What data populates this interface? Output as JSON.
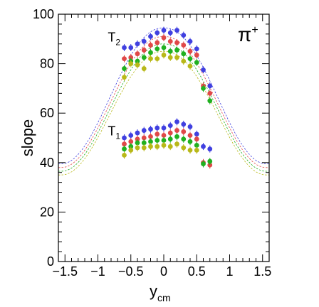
{
  "chart_data": {
    "type": "scatter",
    "xlabel": "y",
    "xlabel_sub": "cm",
    "ylabel": "slope",
    "xlim": [
      -1.6,
      1.6
    ],
    "ylim": [
      0,
      100
    ],
    "xticks": [
      -1.5,
      -1,
      -0.5,
      0,
      0.5,
      1,
      1.5
    ],
    "xtick_labels": [
      "−1.5",
      "−1",
      "−0.5",
      "0",
      "0.5",
      "1",
      "1.5"
    ],
    "yticks": [
      0,
      20,
      40,
      60,
      80,
      100
    ],
    "ytick_labels": [
      "0",
      "20",
      "40",
      "60",
      "80",
      "100"
    ],
    "grid": false,
    "particle_label": "π",
    "particle_charge": "+",
    "annotations": [
      {
        "text": "T",
        "sub": "2",
        "x": -0.85,
        "y": 89
      },
      {
        "text": "T",
        "sub": "1",
        "x": -0.85,
        "y": 51
      }
    ],
    "colors": {
      "blue": "#4040e0",
      "red": "#e04848",
      "green": "#20b020",
      "olive": "#b8b818"
    },
    "series": [
      {
        "group": "T2",
        "color": "blue",
        "points": [
          {
            "x": -0.6,
            "y": 86.5
          },
          {
            "x": -0.5,
            "y": 86.5
          },
          {
            "x": -0.4,
            "y": 88
          },
          {
            "x": -0.3,
            "y": 89
          },
          {
            "x": -0.2,
            "y": 91
          },
          {
            "x": -0.1,
            "y": 92.5
          },
          {
            "x": 0.0,
            "y": 93.5
          },
          {
            "x": 0.1,
            "y": 92.5
          },
          {
            "x": 0.2,
            "y": 93.5
          },
          {
            "x": 0.3,
            "y": 91.5
          },
          {
            "x": 0.4,
            "y": 89
          },
          {
            "x": 0.5,
            "y": 86
          },
          {
            "x": 0.6,
            "y": 77.5
          },
          {
            "x": 0.7,
            "y": 71
          }
        ]
      },
      {
        "group": "T2",
        "color": "red",
        "points": [
          {
            "x": -0.6,
            "y": 82
          },
          {
            "x": -0.5,
            "y": 82.5
          },
          {
            "x": -0.4,
            "y": 84
          },
          {
            "x": -0.3,
            "y": 85.5
          },
          {
            "x": -0.2,
            "y": 87.5
          },
          {
            "x": -0.1,
            "y": 88.5
          },
          {
            "x": 0.0,
            "y": 90.5
          },
          {
            "x": 0.1,
            "y": 89
          },
          {
            "x": 0.2,
            "y": 88.5
          },
          {
            "x": 0.3,
            "y": 87.5
          },
          {
            "x": 0.4,
            "y": 85
          },
          {
            "x": 0.5,
            "y": 83.5
          },
          {
            "x": 0.6,
            "y": 71
          },
          {
            "x": 0.7,
            "y": 68
          }
        ]
      },
      {
        "group": "T2",
        "color": "green",
        "points": [
          {
            "x": -0.6,
            "y": 78
          },
          {
            "x": -0.5,
            "y": 81
          },
          {
            "x": -0.4,
            "y": 81
          },
          {
            "x": -0.3,
            "y": 82.5
          },
          {
            "x": -0.2,
            "y": 84.5
          },
          {
            "x": -0.1,
            "y": 86
          },
          {
            "x": 0.0,
            "y": 86.5
          },
          {
            "x": 0.1,
            "y": 85
          },
          {
            "x": 0.2,
            "y": 85.5
          },
          {
            "x": 0.3,
            "y": 84
          },
          {
            "x": 0.4,
            "y": 82
          },
          {
            "x": 0.5,
            "y": 80.5
          },
          {
            "x": 0.6,
            "y": 70
          },
          {
            "x": 0.7,
            "y": 65
          }
        ]
      },
      {
        "group": "T2",
        "color": "olive",
        "points": [
          {
            "x": -0.6,
            "y": 74.5
          },
          {
            "x": -0.5,
            "y": 80
          },
          {
            "x": -0.4,
            "y": 79.5
          },
          {
            "x": -0.3,
            "y": 78
          },
          {
            "x": -0.2,
            "y": 82
          },
          {
            "x": -0.1,
            "y": 82
          },
          {
            "x": 0.0,
            "y": 83.5
          },
          {
            "x": 0.1,
            "y": 82.5
          },
          {
            "x": 0.2,
            "y": 82.5
          },
          {
            "x": 0.3,
            "y": 81
          },
          {
            "x": 0.4,
            "y": 79
          }
        ]
      },
      {
        "group": "T1",
        "color": "blue",
        "points": [
          {
            "x": -0.6,
            "y": 50
          },
          {
            "x": -0.5,
            "y": 51
          },
          {
            "x": -0.4,
            "y": 52
          },
          {
            "x": -0.3,
            "y": 53
          },
          {
            "x": -0.2,
            "y": 53.5
          },
          {
            "x": -0.1,
            "y": 54
          },
          {
            "x": 0.0,
            "y": 54
          },
          {
            "x": 0.1,
            "y": 55
          },
          {
            "x": 0.2,
            "y": 56.5
          },
          {
            "x": 0.3,
            "y": 55.5
          },
          {
            "x": 0.4,
            "y": 54.5
          },
          {
            "x": 0.5,
            "y": 51.5
          },
          {
            "x": 0.6,
            "y": 46.5
          },
          {
            "x": 0.7,
            "y": 45.5
          }
        ]
      },
      {
        "group": "T1",
        "color": "red",
        "points": [
          {
            "x": -0.6,
            "y": 47.5
          },
          {
            "x": -0.5,
            "y": 48.5
          },
          {
            "x": -0.4,
            "y": 49.5
          },
          {
            "x": -0.3,
            "y": 50
          },
          {
            "x": -0.2,
            "y": 50.5
          },
          {
            "x": -0.1,
            "y": 51.5
          },
          {
            "x": 0.0,
            "y": 51
          },
          {
            "x": 0.1,
            "y": 52
          },
          {
            "x": 0.2,
            "y": 53
          },
          {
            "x": 0.3,
            "y": 52.5
          },
          {
            "x": 0.4,
            "y": 51
          },
          {
            "x": 0.5,
            "y": 49.5
          },
          {
            "x": 0.6,
            "y": 40
          },
          {
            "x": 0.7,
            "y": 39
          }
        ]
      },
      {
        "group": "T1",
        "color": "green",
        "points": [
          {
            "x": -0.6,
            "y": 45.5
          },
          {
            "x": -0.5,
            "y": 46.5
          },
          {
            "x": -0.4,
            "y": 48
          },
          {
            "x": -0.3,
            "y": 48
          },
          {
            "x": -0.2,
            "y": 48.5
          },
          {
            "x": -0.1,
            "y": 49
          },
          {
            "x": 0.0,
            "y": 49
          },
          {
            "x": 0.1,
            "y": 49.5
          },
          {
            "x": 0.2,
            "y": 50.5
          },
          {
            "x": 0.3,
            "y": 49.5
          },
          {
            "x": 0.4,
            "y": 48.5
          },
          {
            "x": 0.5,
            "y": 47
          },
          {
            "x": 0.6,
            "y": 39.5
          },
          {
            "x": 0.7,
            "y": 40.5
          }
        ]
      },
      {
        "group": "T1",
        "color": "olive",
        "points": [
          {
            "x": -0.6,
            "y": 43
          },
          {
            "x": -0.5,
            "y": 45
          },
          {
            "x": -0.4,
            "y": 46
          },
          {
            "x": -0.3,
            "y": 46
          },
          {
            "x": -0.2,
            "y": 46.5
          },
          {
            "x": -0.1,
            "y": 46.5
          },
          {
            "x": 0.0,
            "y": 47
          },
          {
            "x": 0.1,
            "y": 46.5
          },
          {
            "x": 0.2,
            "y": 47.5
          },
          {
            "x": 0.3,
            "y": 46
          },
          {
            "x": 0.4,
            "y": 45
          },
          {
            "x": 0.5,
            "y": 45
          }
        ]
      }
    ],
    "fit_curves": [
      {
        "color": "blue",
        "peak": 94.5,
        "edge": 39.5
      },
      {
        "color": "red",
        "peak": 91,
        "edge": 38
      },
      {
        "color": "green",
        "peak": 88,
        "edge": 36.5
      },
      {
        "color": "olive",
        "peak": 85,
        "edge": 35
      }
    ]
  }
}
